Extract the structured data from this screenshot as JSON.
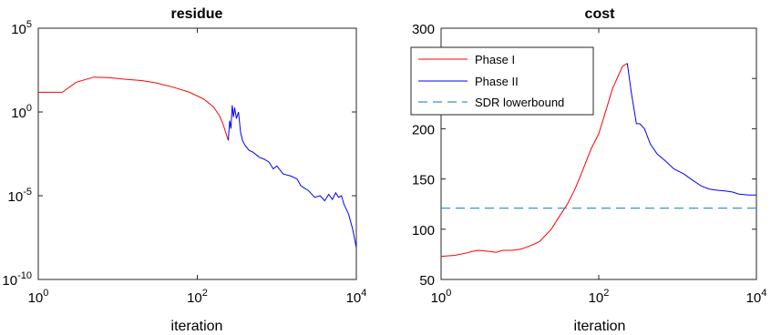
{
  "chart_data": [
    {
      "type": "line",
      "title": "residue",
      "xlabel": "iteration",
      "ylabel": "",
      "xscale": "log",
      "yscale": "log",
      "xlim": [
        1,
        10000
      ],
      "ylim": [
        1e-10,
        100000
      ],
      "x_ticks": [
        {
          "base": "10",
          "exp": "0",
          "value": 1
        },
        {
          "base": "10",
          "exp": "2",
          "value": 100
        },
        {
          "base": "10",
          "exp": "4",
          "value": 10000
        }
      ],
      "y_ticks": [
        {
          "base": "10",
          "exp": "-10",
          "value": 1e-10
        },
        {
          "base": "10",
          "exp": "-5",
          "value": 1e-05
        },
        {
          "base": "10",
          "exp": "0",
          "value": 1
        },
        {
          "base": "10",
          "exp": "5",
          "value": 100000
        }
      ],
      "grid": false,
      "series": [
        {
          "color": "#ff0000",
          "x": [
            1,
            2,
            3,
            5,
            8,
            12,
            20,
            30,
            50,
            80,
            120,
            160,
            190,
            210,
            230,
            245
          ],
          "y": [
            15,
            15,
            60,
            120,
            110,
            90,
            75,
            55,
            30,
            15,
            6,
            2,
            0.6,
            0.2,
            0.05,
            0.02
          ]
        },
        {
          "color": "#0000ff",
          "x": [
            245,
            255,
            265,
            275,
            285,
            295,
            310,
            330,
            350,
            370,
            400,
            450,
            500,
            600,
            700,
            800,
            900,
            1000,
            1200,
            1500,
            1800,
            2000,
            2500,
            3000,
            3500,
            4000,
            4500,
            5000,
            5500,
            6000,
            6500,
            7000,
            8000,
            9000,
            10000
          ],
          "y": [
            0.02,
            0.3,
            0.1,
            2.5,
            0.5,
            1.8,
            0.4,
            1.0,
            0.06,
            0.02,
            0.01,
            0.005,
            0.004,
            0.002,
            0.0015,
            0.001,
            0.0004,
            0.0006,
            0.0002,
            0.00015,
            0.0001,
            4e-05,
            2e-05,
            8e-06,
            1e-05,
            5e-06,
            1.2e-05,
            6e-06,
            1.5e-05,
            8e-06,
            1e-05,
            3e-06,
            8e-07,
            1e-07,
            8e-09
          ]
        }
      ]
    },
    {
      "type": "line",
      "title": "cost",
      "xlabel": "iteration",
      "ylabel": "",
      "xscale": "log",
      "yscale": "linear",
      "xlim": [
        1,
        10000
      ],
      "ylim": [
        50,
        300
      ],
      "x_ticks": [
        {
          "base": "10",
          "exp": "0",
          "value": 1
        },
        {
          "base": "10",
          "exp": "2",
          "value": 100
        },
        {
          "base": "10",
          "exp": "4",
          "value": 10000
        }
      ],
      "y_ticks": [
        {
          "label": "50",
          "value": 50
        },
        {
          "label": "100",
          "value": 100
        },
        {
          "label": "150",
          "value": 150
        },
        {
          "label": "200",
          "value": 200
        },
        {
          "label": "250",
          "value": 250
        },
        {
          "label": "300",
          "value": 300
        }
      ],
      "grid": false,
      "legend_position": "top-left",
      "series": [
        {
          "name": "Phase I",
          "color": "#ff0000",
          "dash": "solid",
          "x": [
            1,
            1.5,
            2,
            2.5,
            3,
            4,
            5,
            6,
            8,
            10,
            12,
            15,
            18,
            20,
            25,
            30,
            40,
            50,
            60,
            80,
            100,
            120,
            150,
            200,
            230
          ],
          "y": [
            73,
            74,
            76,
            78,
            79,
            78,
            77,
            79,
            79,
            80,
            82,
            85,
            88,
            92,
            100,
            110,
            125,
            140,
            155,
            180,
            195,
            215,
            240,
            262,
            265
          ]
        },
        {
          "name": "Phase II",
          "color": "#0000ff",
          "dash": "solid",
          "x": [
            230,
            260,
            300,
            330,
            380,
            450,
            550,
            700,
            900,
            1200,
            1600,
            2000,
            2500,
            3000,
            4000,
            5000,
            6000,
            8000,
            10000
          ],
          "y": [
            265,
            235,
            205,
            205,
            200,
            185,
            175,
            168,
            160,
            155,
            148,
            143,
            140,
            139,
            138,
            137,
            135,
            134,
            134
          ]
        },
        {
          "name": "SDR lowerbound",
          "color": "#3a93c3",
          "dash": "dashed",
          "x": [
            1,
            10000
          ],
          "y": [
            121,
            121
          ]
        }
      ]
    }
  ]
}
